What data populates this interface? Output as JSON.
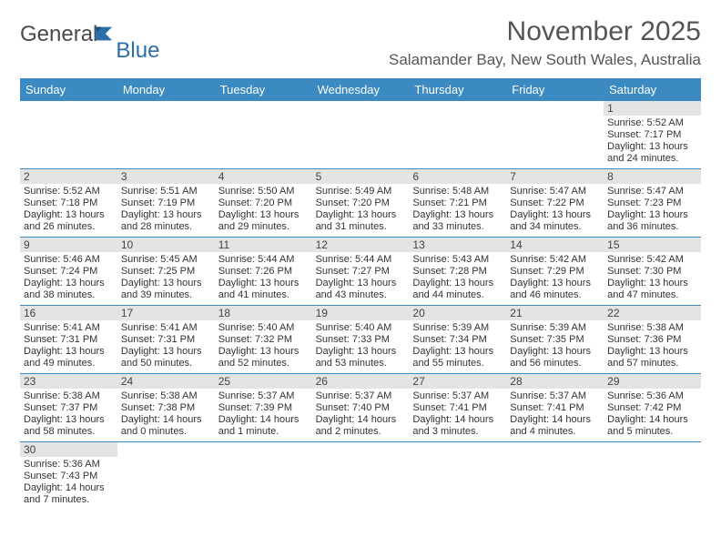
{
  "logo": {
    "text1": "General",
    "text2": "Blue"
  },
  "title": "November 2025",
  "location": "Salamander Bay, New South Wales, Australia",
  "colors": {
    "header_blue": "#3b8bc2",
    "daynum_bg": "#e4e4e4",
    "logo_dark": "#4a4a4a",
    "logo_blue": "#2c6fa8",
    "title_gray": "#555555"
  },
  "dow": [
    "Sunday",
    "Monday",
    "Tuesday",
    "Wednesday",
    "Thursday",
    "Friday",
    "Saturday"
  ],
  "weeks": [
    [
      null,
      null,
      null,
      null,
      null,
      null,
      {
        "n": "1",
        "sr": "5:52 AM",
        "ss": "7:17 PM",
        "dl": "13 hours and 24 minutes."
      }
    ],
    [
      {
        "n": "2",
        "sr": "5:52 AM",
        "ss": "7:18 PM",
        "dl": "13 hours and 26 minutes."
      },
      {
        "n": "3",
        "sr": "5:51 AM",
        "ss": "7:19 PM",
        "dl": "13 hours and 28 minutes."
      },
      {
        "n": "4",
        "sr": "5:50 AM",
        "ss": "7:20 PM",
        "dl": "13 hours and 29 minutes."
      },
      {
        "n": "5",
        "sr": "5:49 AM",
        "ss": "7:20 PM",
        "dl": "13 hours and 31 minutes."
      },
      {
        "n": "6",
        "sr": "5:48 AM",
        "ss": "7:21 PM",
        "dl": "13 hours and 33 minutes."
      },
      {
        "n": "7",
        "sr": "5:47 AM",
        "ss": "7:22 PM",
        "dl": "13 hours and 34 minutes."
      },
      {
        "n": "8",
        "sr": "5:47 AM",
        "ss": "7:23 PM",
        "dl": "13 hours and 36 minutes."
      }
    ],
    [
      {
        "n": "9",
        "sr": "5:46 AM",
        "ss": "7:24 PM",
        "dl": "13 hours and 38 minutes."
      },
      {
        "n": "10",
        "sr": "5:45 AM",
        "ss": "7:25 PM",
        "dl": "13 hours and 39 minutes."
      },
      {
        "n": "11",
        "sr": "5:44 AM",
        "ss": "7:26 PM",
        "dl": "13 hours and 41 minutes."
      },
      {
        "n": "12",
        "sr": "5:44 AM",
        "ss": "7:27 PM",
        "dl": "13 hours and 43 minutes."
      },
      {
        "n": "13",
        "sr": "5:43 AM",
        "ss": "7:28 PM",
        "dl": "13 hours and 44 minutes."
      },
      {
        "n": "14",
        "sr": "5:42 AM",
        "ss": "7:29 PM",
        "dl": "13 hours and 46 minutes."
      },
      {
        "n": "15",
        "sr": "5:42 AM",
        "ss": "7:30 PM",
        "dl": "13 hours and 47 minutes."
      }
    ],
    [
      {
        "n": "16",
        "sr": "5:41 AM",
        "ss": "7:31 PM",
        "dl": "13 hours and 49 minutes."
      },
      {
        "n": "17",
        "sr": "5:41 AM",
        "ss": "7:31 PM",
        "dl": "13 hours and 50 minutes."
      },
      {
        "n": "18",
        "sr": "5:40 AM",
        "ss": "7:32 PM",
        "dl": "13 hours and 52 minutes."
      },
      {
        "n": "19",
        "sr": "5:40 AM",
        "ss": "7:33 PM",
        "dl": "13 hours and 53 minutes."
      },
      {
        "n": "20",
        "sr": "5:39 AM",
        "ss": "7:34 PM",
        "dl": "13 hours and 55 minutes."
      },
      {
        "n": "21",
        "sr": "5:39 AM",
        "ss": "7:35 PM",
        "dl": "13 hours and 56 minutes."
      },
      {
        "n": "22",
        "sr": "5:38 AM",
        "ss": "7:36 PM",
        "dl": "13 hours and 57 minutes."
      }
    ],
    [
      {
        "n": "23",
        "sr": "5:38 AM",
        "ss": "7:37 PM",
        "dl": "13 hours and 58 minutes."
      },
      {
        "n": "24",
        "sr": "5:38 AM",
        "ss": "7:38 PM",
        "dl": "14 hours and 0 minutes."
      },
      {
        "n": "25",
        "sr": "5:37 AM",
        "ss": "7:39 PM",
        "dl": "14 hours and 1 minute."
      },
      {
        "n": "26",
        "sr": "5:37 AM",
        "ss": "7:40 PM",
        "dl": "14 hours and 2 minutes."
      },
      {
        "n": "27",
        "sr": "5:37 AM",
        "ss": "7:41 PM",
        "dl": "14 hours and 3 minutes."
      },
      {
        "n": "28",
        "sr": "5:37 AM",
        "ss": "7:41 PM",
        "dl": "14 hours and 4 minutes."
      },
      {
        "n": "29",
        "sr": "5:36 AM",
        "ss": "7:42 PM",
        "dl": "14 hours and 5 minutes."
      }
    ],
    [
      {
        "n": "30",
        "sr": "5:36 AM",
        "ss": "7:43 PM",
        "dl": "14 hours and 7 minutes."
      },
      null,
      null,
      null,
      null,
      null,
      null
    ]
  ],
  "labels": {
    "sunrise": "Sunrise:",
    "sunset": "Sunset:",
    "daylight": "Daylight:"
  }
}
